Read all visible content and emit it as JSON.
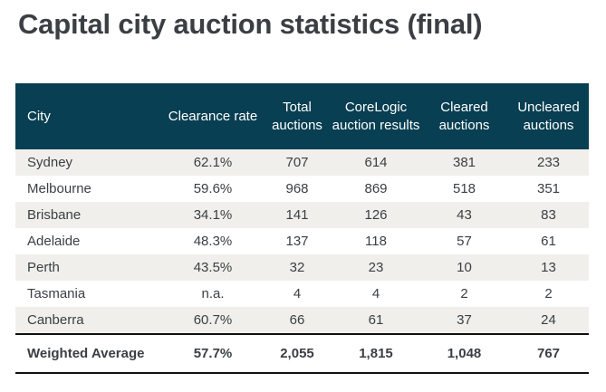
{
  "title": "Capital city auction statistics (final)",
  "headers": [
    "City",
    "Clearance rate",
    "Total auctions",
    "CoreLogic auction results",
    "Cleared auctions",
    "Uncleared auctions"
  ],
  "rows": [
    [
      "Sydney",
      "62.1%",
      "707",
      "614",
      "381",
      "233"
    ],
    [
      "Melbourne",
      "59.6%",
      "968",
      "869",
      "518",
      "351"
    ],
    [
      "Brisbane",
      "34.1%",
      "141",
      "126",
      "43",
      "83"
    ],
    [
      "Adelaide",
      "48.3%",
      "137",
      "118",
      "57",
      "61"
    ],
    [
      "Perth",
      "43.5%",
      "32",
      "23",
      "10",
      "13"
    ],
    [
      "Tasmania",
      "n.a.",
      "4",
      "4",
      "2",
      "2"
    ],
    [
      "Canberra",
      "60.7%",
      "66",
      "61",
      "37",
      "24"
    ]
  ],
  "total": [
    "Weighted Average",
    "57.7%",
    "2,055",
    "1,815",
    "1,048",
    "767"
  ],
  "colors": {
    "header_bg": "#083f52",
    "row_shade": "#f0efeb"
  }
}
